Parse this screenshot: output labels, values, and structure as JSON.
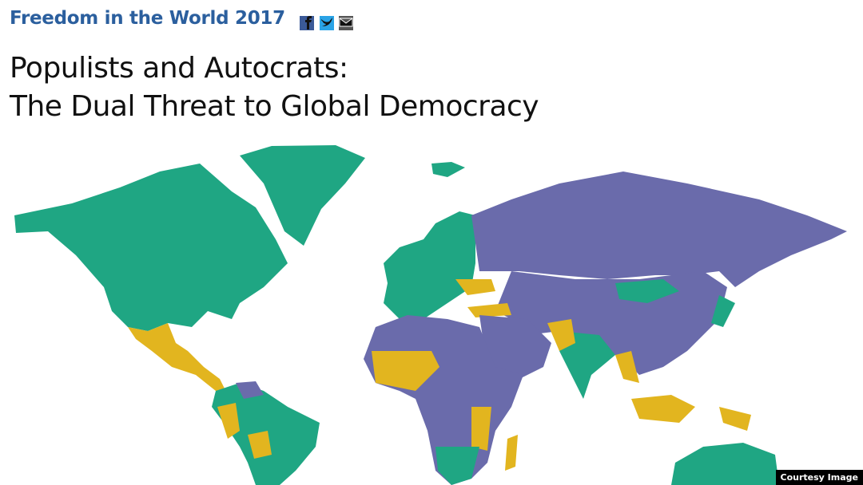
{
  "header": {
    "title": "Freedom in the World 2017"
  },
  "headline": {
    "lines": [
      "Populists and Autocrats:",
      "The Dual Threat to Global Democracy"
    ]
  },
  "credit": "Courtesy Image"
}
